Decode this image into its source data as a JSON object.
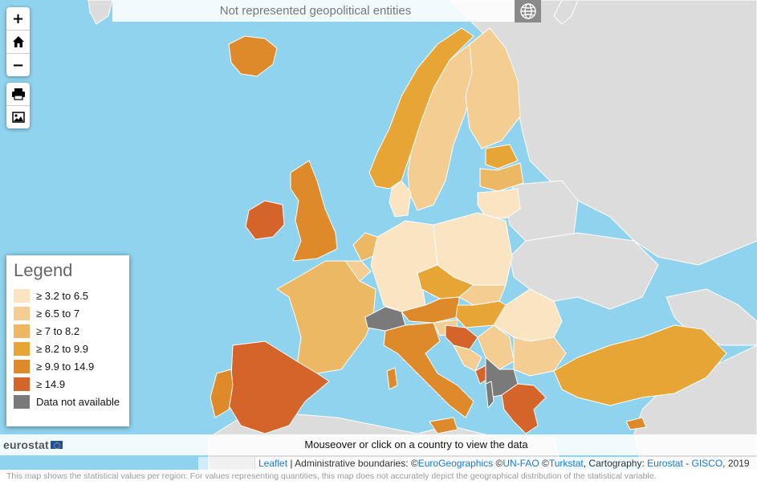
{
  "region_selector": {
    "text": "Not represented geopolitical entities"
  },
  "controls": {
    "zoom_in": "+",
    "zoom_out": "−"
  },
  "legend": {
    "title": "Legend",
    "items": [
      {
        "label": "≥ 3.2 to 6.5",
        "color": "#fbe4c2"
      },
      {
        "label": "≥ 6.5 to 7",
        "color": "#f3cd92"
      },
      {
        "label": "≥ 7 to 8.2",
        "color": "#ecb864"
      },
      {
        "label": "≥ 8.2 to 9.9",
        "color": "#e6a535"
      },
      {
        "label": "≥ 9.9 to 14.9",
        "color": "#de8a2a"
      },
      {
        "label": "≥ 14.9",
        "color": "#d4642a"
      },
      {
        "label": "Data not available",
        "color": "#7a7a7a"
      }
    ]
  },
  "footer": {
    "logo": "eurostat",
    "hint": "Mouseover or click on a country to view the data"
  },
  "attribution": {
    "leaflet": "Leaflet",
    "sep1": " | Administrative boundaries: ©",
    "eurogeo": "EuroGeographics",
    "sep2": " ©",
    "unfao": "UN-FAO",
    "sep3": " ©",
    "turkstat": "Turkstat",
    "sep4": ", Cartography: ",
    "eurostat": "Eurostat",
    "sep5": " - ",
    "gisco": "GISCO",
    "year": ", 2019"
  },
  "disclaimer": "This map shows the statistical values per region: For values representing quantities, this map does not accurately depict the geographical distribution of the statistical variable.",
  "colors": {
    "sea": "#8fd3ef",
    "non_data_land": "#dcdcdc",
    "no_data": "#7a7a7a"
  }
}
